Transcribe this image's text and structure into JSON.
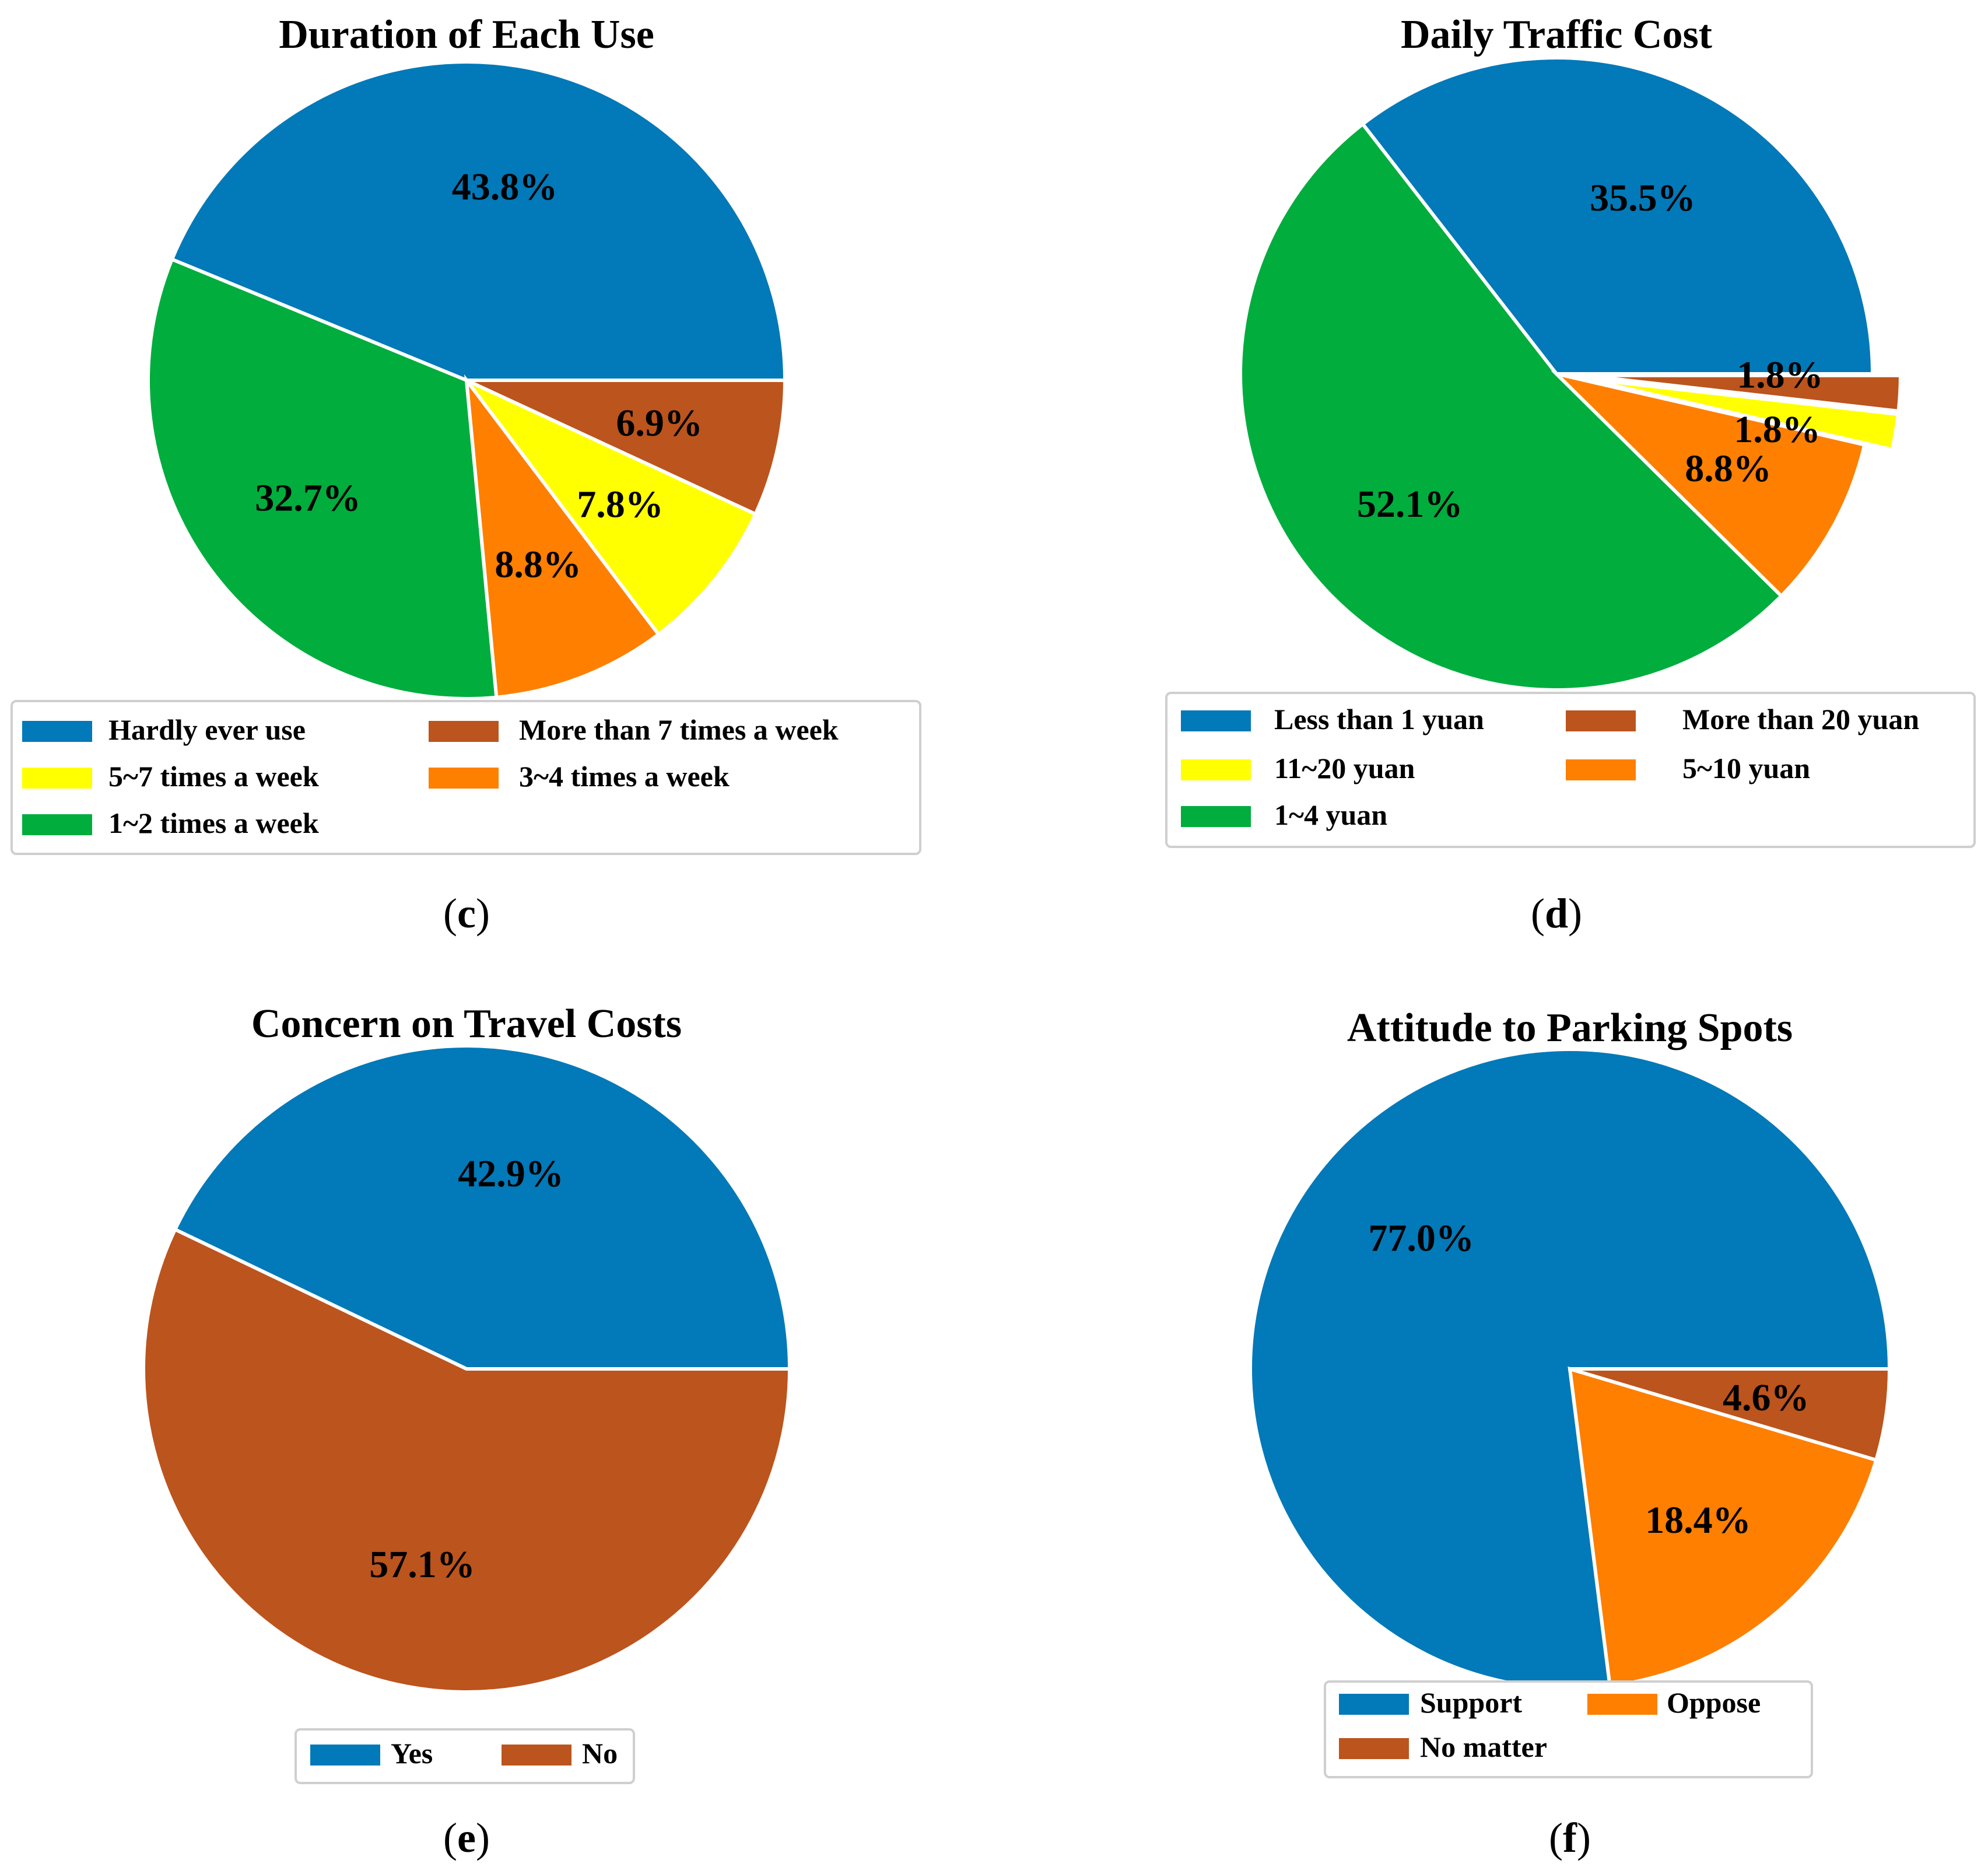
{
  "chart_data": [
    {
      "type": "pie",
      "panel": "(c)",
      "panel_letter": "c",
      "title": "Duration of Each Use",
      "labels": [
        "Hardly ever use",
        "1~2 times a week",
        "3~4 times a week",
        "5~7 times a week",
        "More than 7 times a week"
      ],
      "values": [
        43.8,
        32.7,
        8.8,
        7.8,
        6.9
      ],
      "value_labels": [
        "43.8%",
        "32.7%",
        "8.8%",
        "7.8%",
        "6.9%"
      ],
      "colors": [
        "#0279B8",
        "#00AD3D",
        "#FF7F00",
        "#FFFF00",
        "#BC541D"
      ],
      "explode": [
        0,
        0,
        0,
        0,
        0
      ],
      "legend_order": [
        0,
        3,
        1,
        4,
        2
      ],
      "legend_position": "bottom"
    },
    {
      "type": "pie",
      "panel": "(d)",
      "panel_letter": "d",
      "title": "Daily Traffic Cost",
      "labels": [
        "Less than 1 yuan",
        "1~4 yuan",
        "5~10 yuan",
        "11~20 yuan",
        "More than 20 yuan"
      ],
      "values": [
        35.5,
        52.1,
        8.8,
        1.8,
        1.8
      ],
      "value_labels": [
        "35.5%",
        "52.1%",
        "8.8%",
        "1.8%",
        "1.8%"
      ],
      "colors": [
        "#0279B8",
        "#00AD3D",
        "#FF7F00",
        "#FFFF00",
        "#BC541D"
      ],
      "explode": [
        0,
        0,
        0,
        1,
        1
      ],
      "legend_order": [
        0,
        3,
        1,
        4,
        2
      ],
      "legend_position": "bottom"
    },
    {
      "type": "pie",
      "panel": "(e)",
      "panel_letter": "e",
      "title": "Concern on Travel Costs",
      "labels": [
        "Yes",
        "No"
      ],
      "values": [
        42.9,
        57.1
      ],
      "value_labels": [
        "42.9%",
        "57.1%"
      ],
      "colors": [
        "#0279B8",
        "#BC541D"
      ],
      "explode": [
        0,
        0
      ],
      "legend_order": [
        0,
        1
      ],
      "legend_position": "bottom"
    },
    {
      "type": "pie",
      "panel": "(f)",
      "panel_letter": "f",
      "title": "Attitude to Parking Spots",
      "labels": [
        "Support",
        "Oppose",
        "No matter"
      ],
      "values": [
        77.0,
        18.4,
        4.6
      ],
      "value_labels": [
        "77.0%",
        "18.4%",
        "4.6%"
      ],
      "colors": [
        "#0279B8",
        "#FF7F00",
        "#BC541D"
      ],
      "explode": [
        0,
        0,
        0
      ],
      "legend_order": [
        0,
        2,
        1
      ],
      "legend_position": "bottom"
    }
  ]
}
